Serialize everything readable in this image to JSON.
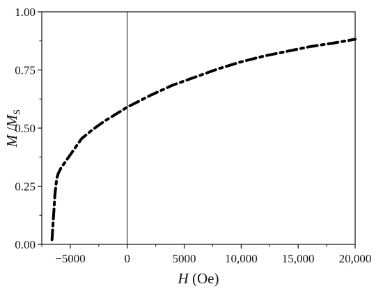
{
  "chart_data": {
    "type": "line",
    "title": "",
    "xlabel": {
      "var": "H",
      "unit": " (Oe)"
    },
    "ylabel": {
      "var": "M",
      "slash": " /",
      "denom": "M",
      "sub": "S"
    },
    "xlim": [
      -7500,
      20000
    ],
    "ylim": [
      0,
      1.0
    ],
    "xticks": [
      -5000,
      0,
      5000,
      10000,
      15000,
      20000
    ],
    "xtick_labels": [
      "−5000",
      "0",
      "5000",
      "10,000",
      "15,000",
      "20,000"
    ],
    "yticks": [
      0,
      0.25,
      0.5,
      0.75,
      1.0
    ],
    "ytick_labels": [
      "0.00",
      "0.25",
      "0.50",
      "0.75",
      "1.00"
    ],
    "reference_line_x": 0,
    "line_style": "dash-dot",
    "line_color": "#000000",
    "series": [
      {
        "x": [
          -6600,
          -6520,
          -6430,
          -6350,
          -6250,
          -6150,
          -6050,
          -5950,
          -5800,
          -5500,
          -5000,
          -4500,
          -4000,
          -3000,
          -2000,
          -1000,
          0,
          1000,
          2000,
          4000,
          6000,
          8000,
          10000,
          12000,
          14000,
          16000,
          18000,
          20000
        ],
        "y": [
          0.02,
          0.08,
          0.15,
          0.21,
          0.26,
          0.29,
          0.305,
          0.315,
          0.33,
          0.35,
          0.385,
          0.42,
          0.455,
          0.495,
          0.53,
          0.56,
          0.59,
          0.615,
          0.64,
          0.685,
          0.72,
          0.755,
          0.785,
          0.81,
          0.83,
          0.85,
          0.865,
          0.882
        ]
      }
    ]
  }
}
